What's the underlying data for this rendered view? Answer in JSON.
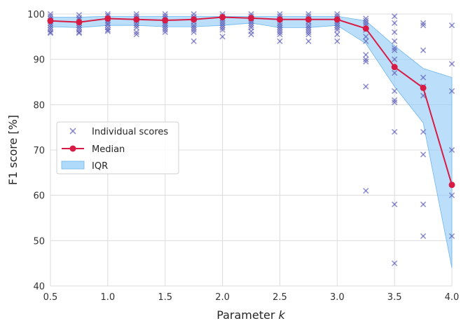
{
  "chart_data": {
    "type": "line",
    "title": "",
    "xlabel": "Parameter",
    "xlabel_var": "k",
    "ylabel": "F1 score [%]",
    "xlim": [
      0.5,
      4.0
    ],
    "ylim": [
      40,
      100
    ],
    "xticks": [
      0.5,
      1.0,
      1.5,
      2.0,
      2.5,
      3.0,
      3.5,
      4.0
    ],
    "xtick_labels": [
      "0.5",
      "1.0",
      "1.5",
      "2.0",
      "2.5",
      "3.0",
      "3.5",
      "4.0"
    ],
    "yticks": [
      40,
      50,
      60,
      70,
      80,
      90,
      100
    ],
    "ytick_labels": [
      "40",
      "50",
      "60",
      "70",
      "80",
      "90",
      "100"
    ],
    "grid": true,
    "legend": {
      "position": "center-left",
      "entries": [
        "Individual scores",
        "Median",
        "IQR"
      ]
    },
    "x": [
      0.5,
      0.75,
      1.0,
      1.25,
      1.5,
      1.75,
      2.0,
      2.25,
      2.5,
      2.75,
      3.0,
      3.25,
      3.5,
      3.75,
      4.0
    ],
    "series": [
      {
        "name": "Median",
        "values": [
          98.5,
          98.2,
          99.0,
          98.8,
          98.6,
          98.8,
          99.3,
          99.1,
          98.8,
          98.8,
          98.8,
          96.8,
          88.3,
          83.7,
          62.3
        ],
        "color": "#d81b45"
      },
      {
        "name": "IQR",
        "lower": [
          97.2,
          97.0,
          97.5,
          97.5,
          97.2,
          97.2,
          97.5,
          98.0,
          97.0,
          97.0,
          97.5,
          93.5,
          84.0,
          76.0,
          44.0
        ],
        "upper": [
          99.3,
          99.3,
          99.5,
          99.5,
          99.5,
          99.5,
          99.5,
          99.5,
          99.5,
          99.5,
          99.5,
          98.5,
          93.0,
          88.0,
          86.0
        ],
        "color": "#8ecaf7"
      },
      {
        "name": "Individual scores",
        "color": "#5a5ab5",
        "points": [
          {
            "x": 0.5,
            "ys": [
              100,
              99.5,
              99,
              98.5,
              98,
              97.5,
              97,
              96.5,
              96,
              95.8
            ]
          },
          {
            "x": 0.75,
            "ys": [
              99.8,
              99.2,
              98.8,
              98,
              97.5,
              97,
              96.5,
              96,
              95.8
            ]
          },
          {
            "x": 1.0,
            "ys": [
              100,
              99.6,
              99,
              98.5,
              98,
              97.6,
              97,
              96.5,
              96.2
            ]
          },
          {
            "x": 1.25,
            "ys": [
              100,
              99.5,
              99,
              98.6,
              98,
              97.5,
              97,
              96,
              95.5
            ]
          },
          {
            "x": 1.5,
            "ys": [
              100,
              99.5,
              99,
              98.5,
              98,
              97.5,
              97,
              96.5,
              96
            ]
          },
          {
            "x": 1.75,
            "ys": [
              100,
              99.4,
              98.8,
              98.2,
              97.5,
              97,
              96.5,
              96,
              94
            ]
          },
          {
            "x": 2.0,
            "ys": [
              100,
              99.5,
              99,
              98.5,
              98,
              97.5,
              97,
              96.5,
              95
            ]
          },
          {
            "x": 2.25,
            "ys": [
              100,
              99.5,
              99,
              98.5,
              98,
              97.5,
              97,
              96.2,
              95.5
            ]
          },
          {
            "x": 2.5,
            "ys": [
              100,
              99.5,
              98.8,
              98,
              97.5,
              97,
              96.5,
              96,
              95.5,
              94
            ]
          },
          {
            "x": 2.75,
            "ys": [
              100,
              99.5,
              98.8,
              98.2,
              97.5,
              97,
              96.5,
              96,
              95.5,
              94
            ]
          },
          {
            "x": 3.0,
            "ys": [
              100,
              99.5,
              99,
              98.5,
              98,
              97.5,
              97,
              96.5,
              95.5,
              94
            ]
          },
          {
            "x": 3.25,
            "ys": [
              99,
              98.5,
              98,
              97.5,
              96.5,
              95,
              94,
              91,
              90,
              89.5,
              84,
              61
            ]
          },
          {
            "x": 3.5,
            "ys": [
              99.5,
              98,
              96,
              94,
              92.5,
              92,
              90,
              87,
              83,
              81,
              80.5,
              74,
              58,
              45
            ]
          },
          {
            "x": 3.75,
            "ys": [
              98,
              97.5,
              92,
              86,
              84,
              82,
              74,
              69,
              58,
              51
            ]
          },
          {
            "x": 4.0,
            "ys": [
              97.5,
              89,
              83,
              70,
              60,
              51
            ]
          }
        ]
      }
    ]
  }
}
